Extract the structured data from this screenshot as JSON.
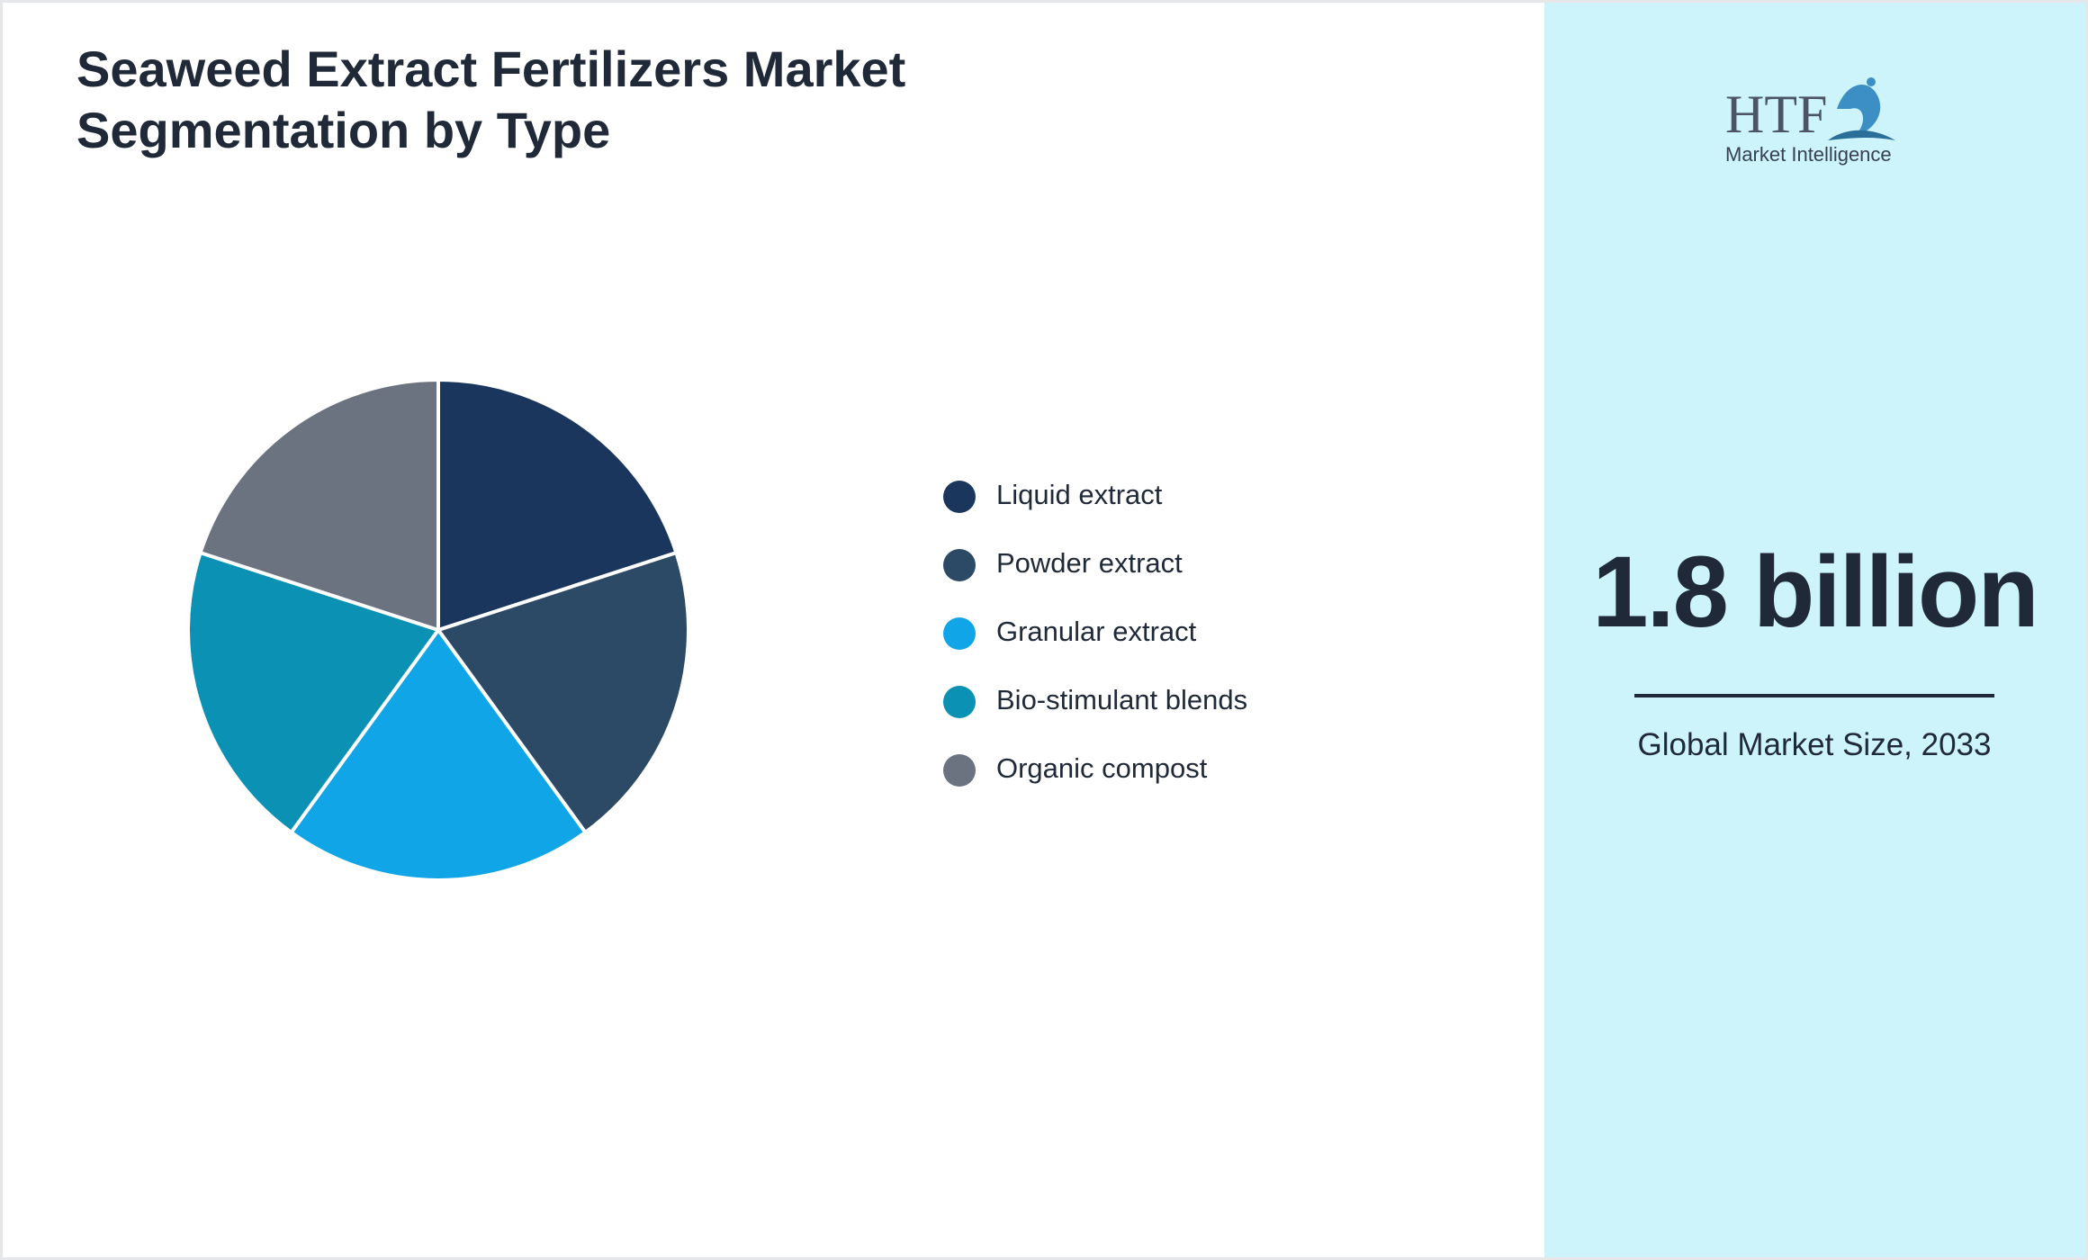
{
  "chart_data": {
    "type": "pie",
    "title": "Seaweed Extract Fertilizers Market Segmentation by Type",
    "categories": [
      "Liquid extract",
      "Powder extract",
      "Granular extract",
      "Bio-stimulant blends",
      "Organic compost"
    ],
    "values": [
      20,
      20,
      20,
      20,
      20
    ],
    "colors": [
      "#1b365d",
      "#2c4a66",
      "#10a5e6",
      "#0a91b4",
      "#6b7280"
    ]
  },
  "logo": {
    "name": "HTF",
    "tagline": "Market Intelligence"
  },
  "summary": {
    "value": "1.8 billion",
    "caption": "Global Market Size, 2033"
  }
}
